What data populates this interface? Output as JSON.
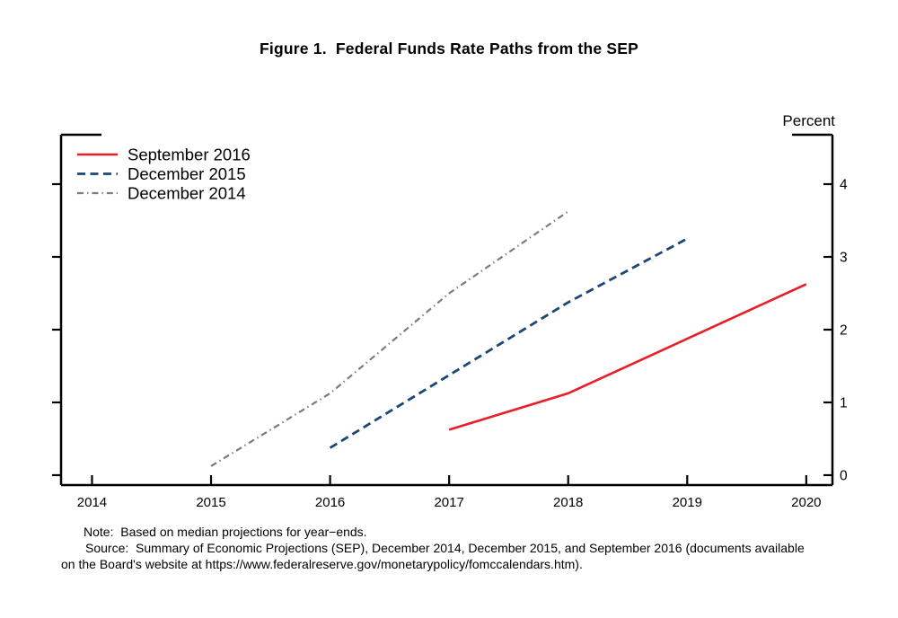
{
  "chart_data": {
    "type": "line",
    "title": "Figure 1.  Federal Funds Rate Paths from the SEP",
    "y_axis_unit_label": "Percent",
    "grid": false,
    "legend_position": "top-left-inside",
    "x_ticks": [
      2014,
      2015,
      2016,
      2017,
      2018,
      2019,
      2020
    ],
    "y_ticks": [
      0,
      1,
      2,
      3,
      4
    ],
    "xlim": [
      2013.74,
      2020.22
    ],
    "ylim": [
      -0.136,
      4.679
    ],
    "series": [
      {
        "name": "September 2016",
        "color": "#e81f26",
        "style": "solid",
        "points": [
          [
            2017,
            0.625
          ],
          [
            2018,
            1.125
          ],
          [
            2019,
            1.875
          ],
          [
            2020,
            2.625
          ]
        ]
      },
      {
        "name": "December 2015",
        "color": "#1a4876",
        "style": "dashed",
        "points": [
          [
            2016,
            0.375
          ],
          [
            2017,
            1.375
          ],
          [
            2018,
            2.375
          ],
          [
            2019,
            3.25
          ]
        ]
      },
      {
        "name": "December 2014",
        "color": "#797c7e",
        "style": "dash-dot",
        "points": [
          [
            2015,
            0.125
          ],
          [
            2016,
            1.125
          ],
          [
            2017,
            2.5
          ],
          [
            2018,
            3.625
          ]
        ]
      }
    ],
    "note_lines": {
      "line1": "Note:  Based on median projections for year−ends.",
      "line2": "Source:  Summary of Economic Projections (SEP), December 2014, December 2015, and September 2016 (documents available",
      "line3": "on the Board's website at https://www.federalreserve.gov/monetarypolicy/fomccalendars.htm)."
    }
  }
}
